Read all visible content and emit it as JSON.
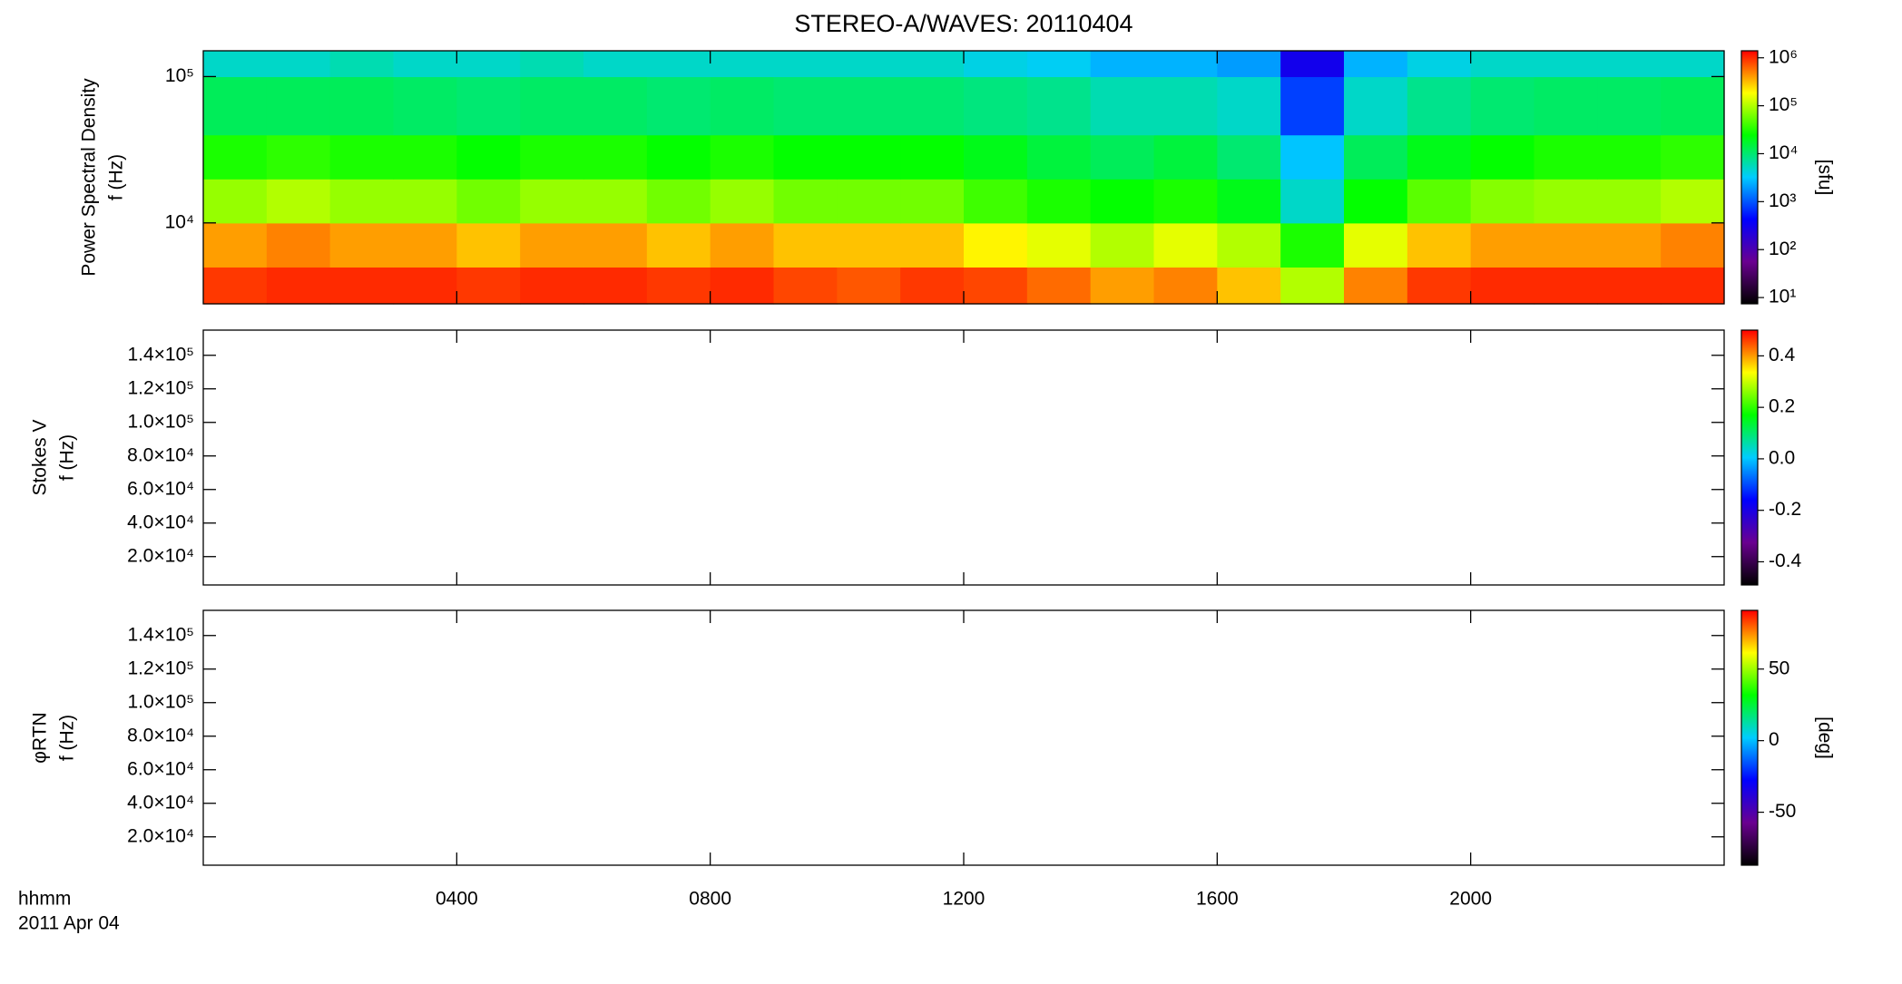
{
  "chart_data": [
    {
      "type": "heatmap",
      "title": "STEREO-A/WAVES: 20110404",
      "ylabel": [
        "Power Spectral Density",
        "f (Hz)"
      ],
      "xlim": [
        0,
        24
      ],
      "ylim": [
        2800,
        150000
      ],
      "ylog": true,
      "yticks": [
        {
          "value": 10000,
          "label": "10⁴"
        },
        {
          "value": 100000,
          "label": "10⁵"
        }
      ],
      "xbins": [
        0,
        1,
        2,
        3,
        4,
        5,
        6,
        7,
        8,
        9,
        10,
        11,
        12,
        13,
        14,
        15,
        16,
        17,
        18,
        19,
        20,
        21,
        22,
        23,
        24
      ],
      "ybins": [
        2800,
        5000,
        10000,
        20000,
        40000,
        100000,
        150000
      ],
      "z": [
        [
          900000,
          1000000,
          1000000,
          1000000,
          900000,
          1000000,
          1000000,
          900000,
          1000000,
          800000,
          700000,
          900000,
          800000,
          600000,
          400000,
          500000,
          300000,
          100000,
          500000,
          900000,
          1000000,
          1000000,
          1000000,
          1000000
        ],
        [
          400000,
          500000,
          400000,
          400000,
          300000,
          400000,
          400000,
          300000,
          400000,
          300000,
          300000,
          300000,
          200000,
          150000,
          100000,
          150000,
          100000,
          30000,
          150000,
          300000,
          400000,
          400000,
          400000,
          500000
        ],
        [
          80000,
          100000,
          80000,
          80000,
          60000,
          80000,
          80000,
          60000,
          80000,
          60000,
          60000,
          60000,
          40000,
          30000,
          25000,
          30000,
          20000,
          5000,
          25000,
          50000,
          70000,
          80000,
          80000,
          100000
        ],
        [
          30000,
          35000,
          30000,
          30000,
          25000,
          30000,
          30000,
          25000,
          30000,
          25000,
          25000,
          25000,
          20000,
          15000,
          12000,
          15000,
          10000,
          3000,
          12000,
          20000,
          25000,
          30000,
          30000,
          35000
        ],
        [
          12000,
          12000,
          12000,
          11000,
          10000,
          11000,
          11000,
          10000,
          11000,
          10000,
          10000,
          10000,
          9000,
          8000,
          6000,
          6000,
          5000,
          800,
          5000,
          8000,
          10000,
          11000,
          11000,
          12000
        ],
        [
          5000,
          5000,
          6000,
          5000,
          5000,
          6000,
          5000,
          5000,
          5000,
          5000,
          5000,
          5000,
          4000,
          3500,
          2500,
          2500,
          2000,
          300,
          2500,
          4000,
          5000,
          5000,
          5000,
          5000
        ]
      ],
      "zlim": [
        7.4,
        1400000
      ],
      "zlog": true,
      "zticks": [
        {
          "value": 10,
          "label": "10¹"
        },
        {
          "value": 100,
          "label": "10²"
        },
        {
          "value": 1000,
          "label": "10³"
        },
        {
          "value": 10000,
          "label": "10⁴"
        },
        {
          "value": 100000,
          "label": "10⁵"
        },
        {
          "value": 1000000,
          "label": "10⁶"
        }
      ],
      "zlabel": "[sfu]",
      "colormap": [
        "#000000",
        "#6a0090",
        "#0000ff",
        "#00ccff",
        "#00ff00",
        "#ffff00",
        "#ff0000"
      ]
    },
    {
      "type": "heatmap",
      "ylabel": [
        "Stokes V",
        "f (Hz)"
      ],
      "xlim": [
        0,
        24
      ],
      "ylim": [
        3100,
        155000
      ],
      "yticks": [
        {
          "value": 20000,
          "label": "2.0×10⁴"
        },
        {
          "value": 40000,
          "label": "4.0×10⁴"
        },
        {
          "value": 60000,
          "label": "6.0×10⁴"
        },
        {
          "value": 80000,
          "label": "8.0×10⁴"
        },
        {
          "value": 100000,
          "label": "1.0×10⁵"
        },
        {
          "value": 120000,
          "label": "1.2×10⁵"
        },
        {
          "value": 140000,
          "label": "1.4×10⁵"
        }
      ],
      "zlim": [
        -0.49,
        0.5
      ],
      "zticks": [
        -0.4,
        -0.2,
        {
          "value": 0,
          "label": "0.0"
        },
        0.2,
        0.4
      ],
      "colormap": [
        "#000000",
        "#6a0090",
        "#0000ff",
        "#00ccff",
        "#00ff00",
        "#ffff00",
        "#ff0000"
      ]
    },
    {
      "type": "heatmap",
      "ylabel": [
        "φRTN",
        "f (Hz)"
      ],
      "xlim": [
        0,
        24
      ],
      "ylim": [
        3100,
        155000
      ],
      "yticks": [
        {
          "value": 20000,
          "label": "2.0×10⁴"
        },
        {
          "value": 40000,
          "label": "4.0×10⁴"
        },
        {
          "value": 60000,
          "label": "6.0×10⁴"
        },
        {
          "value": 80000,
          "label": "8.0×10⁴"
        },
        {
          "value": 100000,
          "label": "1.0×10⁵"
        },
        {
          "value": 120000,
          "label": "1.2×10⁵"
        },
        {
          "value": 140000,
          "label": "1.4×10⁵"
        }
      ],
      "zlim": [
        -87,
        91
      ],
      "zticks": [
        -50,
        0,
        50
      ],
      "zlabel": "[deg]",
      "colormap": [
        "#000000",
        "#6a0090",
        "#0000ff",
        "#00ccff",
        "#00ff00",
        "#ffff00",
        "#ff0000"
      ],
      "xticks": [
        {
          "value": 4,
          "label": "0400"
        },
        {
          "value": 8,
          "label": "0800"
        },
        {
          "value": 12,
          "label": "1200"
        },
        {
          "value": 16,
          "label": "1600"
        },
        {
          "value": 20,
          "label": "2000"
        }
      ],
      "xlabel": [
        "hhmm",
        "2011 Apr 04"
      ]
    }
  ]
}
